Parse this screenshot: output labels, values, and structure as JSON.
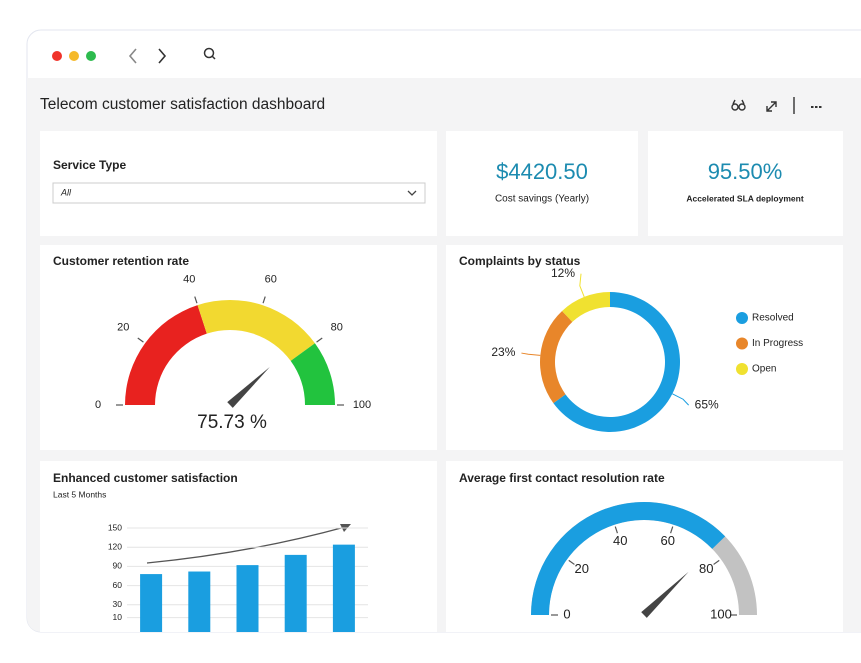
{
  "header": {
    "title": "Telecom customer satisfaction dashboard"
  },
  "filter": {
    "label": "Service Type",
    "value": "All"
  },
  "kpis": [
    {
      "value": "$4420.50",
      "label": "Cost savings (Yearly)"
    },
    {
      "value": "95.50%",
      "label": "Accelerated SLA deployment"
    }
  ],
  "chart_data": [
    {
      "type": "gauge",
      "title": "Customer retention rate",
      "values": [
        75.73
      ],
      "value_labels": [
        "75.73 %"
      ],
      "ylim": [
        0,
        100
      ],
      "yticks": [
        0,
        20,
        40,
        60,
        80,
        100
      ],
      "bands": [
        {
          "from": 0,
          "to": 40,
          "color": "#e8221f"
        },
        {
          "from": 40,
          "to": 80,
          "color": "#f2d930"
        },
        {
          "from": 80,
          "to": 100,
          "color": "#22c33e"
        }
      ]
    },
    {
      "type": "pie",
      "title": "Complaints by status",
      "categories": [
        "Resolved",
        "In Progress",
        "Open"
      ],
      "values": [
        65,
        23,
        12
      ],
      "value_labels": [
        "65%",
        "23%",
        "12%"
      ],
      "colors": [
        "#1a9ee0",
        "#e8862a",
        "#f0e130"
      ],
      "legend": "right"
    },
    {
      "type": "bar",
      "title": "Enhanced customer satisfaction",
      "subtitle": "Last 5 Months",
      "values": [
        78,
        82,
        92,
        108,
        124
      ],
      "color": "#1a9ee0",
      "ylim": [
        0,
        150
      ],
      "yticks": [
        10,
        30,
        60,
        90,
        120,
        150
      ],
      "grid": true
    },
    {
      "type": "gauge",
      "title": "Average first contact resolution rate",
      "values": [
        75.5
      ],
      "ylim": [
        0,
        100
      ],
      "yticks": [
        0,
        20,
        40,
        60,
        80,
        100
      ],
      "color": "#1a9ee0",
      "track_color": "#c2c2c2"
    }
  ]
}
